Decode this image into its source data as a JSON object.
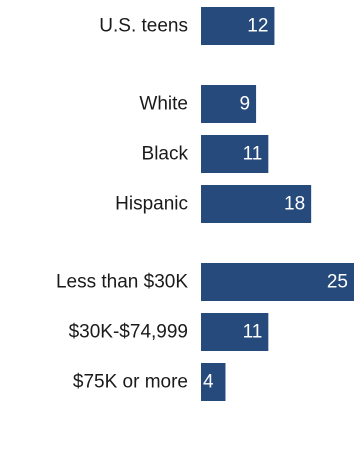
{
  "chart_data": {
    "type": "bar",
    "orientation": "horizontal",
    "groups": [
      {
        "bars": [
          {
            "category": "U.S. teens",
            "value": 12
          }
        ]
      },
      {
        "bars": [
          {
            "category": "White",
            "value": 9
          },
          {
            "category": "Black",
            "value": 11
          },
          {
            "category": "Hispanic",
            "value": 18
          }
        ]
      },
      {
        "bars": [
          {
            "category": "Less than $30K",
            "value": 25
          },
          {
            "category": "$30K-$74,999",
            "value": 11
          },
          {
            "category": "$75K or more",
            "value": 4
          }
        ]
      }
    ],
    "xlim": [
      0,
      25
    ],
    "grid": false,
    "colors": {
      "bar": "#264a7c",
      "value_label": "#ffffff",
      "category_label": "#1a1a1a"
    }
  }
}
